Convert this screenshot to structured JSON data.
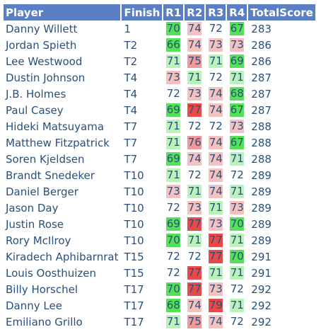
{
  "headers": [
    "Player",
    "Finish",
    "R1",
    "R2",
    "R3",
    "R4",
    "TotalScore"
  ],
  "score_colors": {
    "eagle": "#55e05a",
    "birdie": "#baf2bb",
    "bogey": "#f4c1c1",
    "double": "#ee9a9a",
    "worse": "#e84a4a"
  },
  "rows": [
    {
      "player": "Danny Willett",
      "finish": "1",
      "rounds": [
        "70",
        "74",
        "72",
        "67"
      ],
      "total": "283"
    },
    {
      "player": "Jordan Spieth",
      "finish": "T2",
      "rounds": [
        "66",
        "74",
        "73",
        "73"
      ],
      "total": "286"
    },
    {
      "player": "Lee Westwood",
      "finish": "T2",
      "rounds": [
        "71",
        "75",
        "71",
        "69"
      ],
      "total": "286"
    },
    {
      "player": "Dustin Johnson",
      "finish": "T4",
      "rounds": [
        "73",
        "71",
        "72",
        "71"
      ],
      "total": "287"
    },
    {
      "player": "J.B. Holmes",
      "finish": "T4",
      "rounds": [
        "72",
        "73",
        "74",
        "68"
      ],
      "total": "287"
    },
    {
      "player": "Paul Casey",
      "finish": "T4",
      "rounds": [
        "69",
        "77",
        "74",
        "67"
      ],
      "total": "287"
    },
    {
      "player": "Hideki Matsuyama",
      "finish": "T7",
      "rounds": [
        "71",
        "72",
        "72",
        "73"
      ],
      "total": "288"
    },
    {
      "player": "Matthew Fitzpatrick",
      "finish": "T7",
      "rounds": [
        "71",
        "76",
        "74",
        "67"
      ],
      "total": "288"
    },
    {
      "player": "Soren Kjeldsen",
      "finish": "T7",
      "rounds": [
        "69",
        "74",
        "74",
        "71"
      ],
      "total": "288"
    },
    {
      "player": "Brandt Snedeker",
      "finish": "T10",
      "rounds": [
        "71",
        "72",
        "74",
        "72"
      ],
      "total": "289"
    },
    {
      "player": "Daniel Berger",
      "finish": "T10",
      "rounds": [
        "73",
        "71",
        "74",
        "71"
      ],
      "total": "289"
    },
    {
      "player": "Jason Day",
      "finish": "T10",
      "rounds": [
        "72",
        "73",
        "71",
        "73"
      ],
      "total": "289"
    },
    {
      "player": "Justin Rose",
      "finish": "T10",
      "rounds": [
        "69",
        "77",
        "73",
        "70"
      ],
      "total": "289"
    },
    {
      "player": "Rory McIlroy",
      "finish": "T10",
      "rounds": [
        "70",
        "71",
        "77",
        "71"
      ],
      "total": "289"
    },
    {
      "player": "Kiradech Aphibarnrat",
      "finish": "T15",
      "rounds": [
        "72",
        "72",
        "77",
        "70"
      ],
      "total": "291"
    },
    {
      "player": "Louis Oosthuizen",
      "finish": "T15",
      "rounds": [
        "72",
        "77",
        "71",
        "71"
      ],
      "total": "291"
    },
    {
      "player": "Billy Horschel",
      "finish": "T17",
      "rounds": [
        "70",
        "77",
        "73",
        "72"
      ],
      "total": "292"
    },
    {
      "player": "Danny Lee",
      "finish": "T17",
      "rounds": [
        "68",
        "74",
        "79",
        "71"
      ],
      "total": "292"
    },
    {
      "player": "Emiliano Grillo",
      "finish": "T17",
      "rounds": [
        "71",
        "75",
        "74",
        "72"
      ],
      "total": "292"
    }
  ]
}
